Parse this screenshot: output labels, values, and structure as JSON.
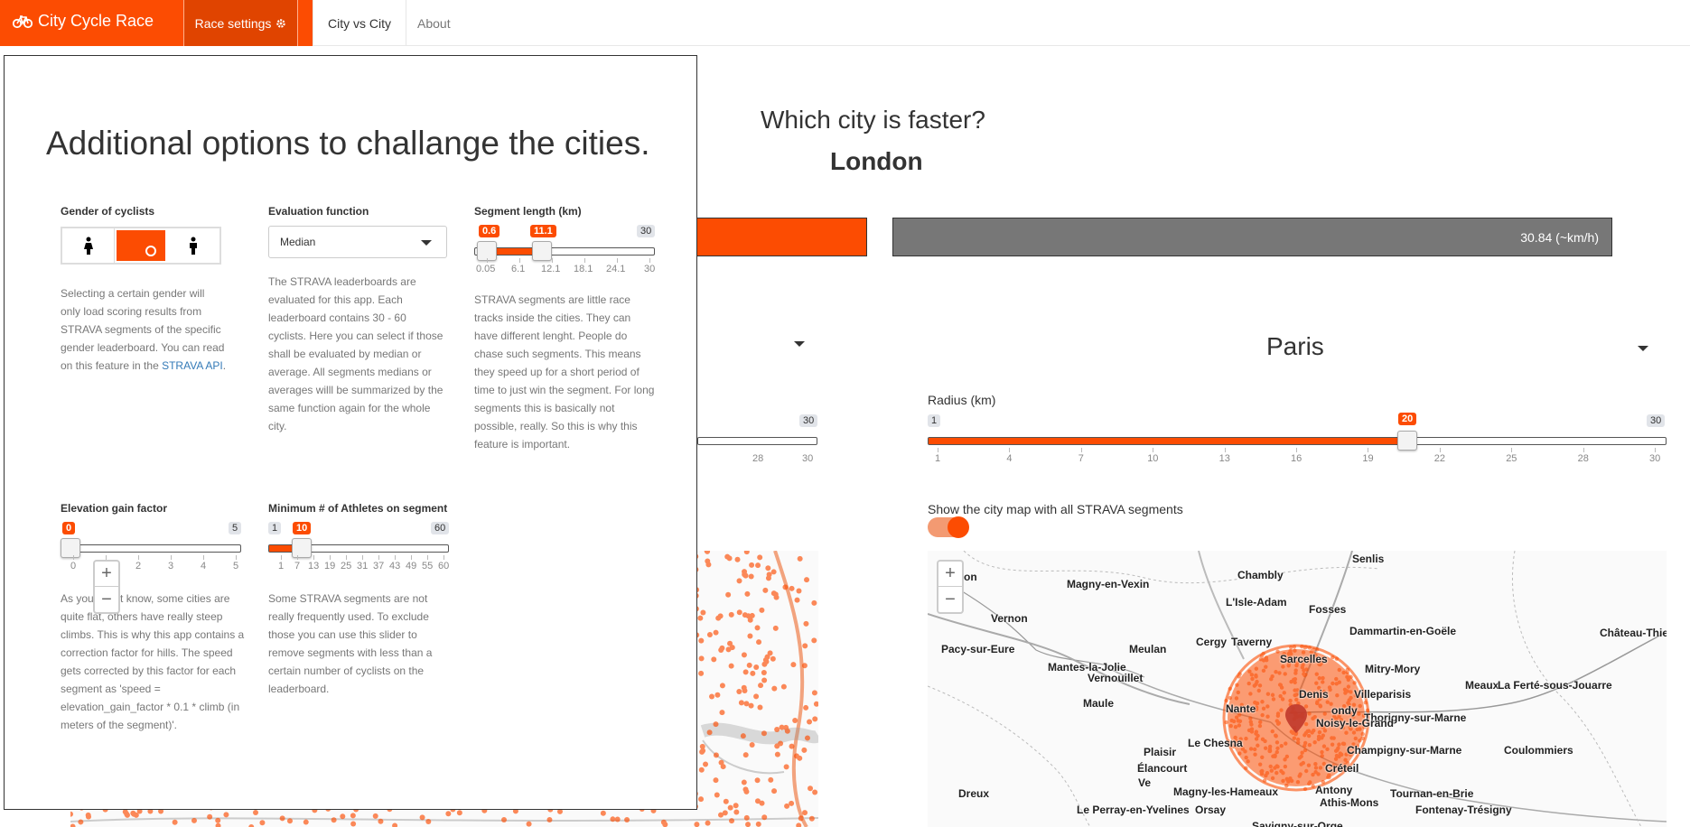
{
  "navbar": {
    "brand": "City Cycle Race",
    "settings": "Race settings",
    "tabs": [
      "City vs City",
      "About"
    ]
  },
  "main": {
    "question": "Which city is faster?",
    "leader": "London",
    "right_speed": "30.84 (~km/h)",
    "right_city": "Paris",
    "radius_label": "Radius (km)",
    "radius": {
      "min": "1",
      "max": "30",
      "value": "20",
      "ticks": [
        "1",
        "4",
        "7",
        "10",
        "13",
        "16",
        "19",
        "22",
        "25",
        "28",
        "30"
      ]
    },
    "left_radius": {
      "max": "30",
      "ticks": [
        "28",
        "30"
      ]
    },
    "map_toggle_label": "Show the city map with all STRAVA segments"
  },
  "left_map": {
    "zoom_in": "+",
    "zoom_out": "−"
  },
  "right_map": {
    "zoom_in": "+",
    "zoom_out": "−",
    "places": [
      {
        "name": "Senlis"
      },
      {
        "name": "Chambly"
      },
      {
        "name": "Magny-en-Vexin"
      },
      {
        "name": "L'Isle-Adam"
      },
      {
        "name": "Fosses"
      },
      {
        "name": "Vernon"
      },
      {
        "name": "Dammartin-en-Goële"
      },
      {
        "name": "Château-Thie"
      },
      {
        "name": "Cergy"
      },
      {
        "name": "Taverny"
      },
      {
        "name": "Pacy-sur-Eure"
      },
      {
        "name": "Meulan"
      },
      {
        "name": "Sarcelles"
      },
      {
        "name": "Mantes-la-Jolie"
      },
      {
        "name": "Mitry-Mory"
      },
      {
        "name": "Vernouillet"
      },
      {
        "name": "Meaux"
      },
      {
        "name": "La Ferté-sous-Jouarre"
      },
      {
        "name": "Denis"
      },
      {
        "name": "Villeparisis"
      },
      {
        "name": "Maule"
      },
      {
        "name": "Nante"
      },
      {
        "name": "ondy"
      },
      {
        "name": "Thorigny-sur-Marne"
      },
      {
        "name": "Noisy-le-Grand"
      },
      {
        "name": "Le Chesna"
      },
      {
        "name": "Plaisir"
      },
      {
        "name": "Champigny-sur-Marne"
      },
      {
        "name": "Coulommiers"
      },
      {
        "name": "Élancourt"
      },
      {
        "name": "Créteil"
      },
      {
        "name": "Ve"
      },
      {
        "name": "Magny-les-Hameaux"
      },
      {
        "name": "Antony"
      },
      {
        "name": "Dreux"
      },
      {
        "name": "Tournan-en-Brie"
      },
      {
        "name": "Athis-Mons"
      },
      {
        "name": "Le Perray-en-Yvelines"
      },
      {
        "name": "Orsay"
      },
      {
        "name": "Fontenay-Trésigny"
      },
      {
        "name": "Savigny-sur-Orge"
      },
      {
        "name": "on"
      }
    ]
  },
  "panel": {
    "title": "Additional options to challange the cities.",
    "gender": {
      "label": "Gender of cyclists",
      "desc": "Selecting a certain gender will only load scoring results from STRAVA segments of the specific gender leaderboard. You can read on this feature in the",
      "link": "STRAVA API"
    },
    "evaluation": {
      "label": "Evaluation function",
      "value": "Median",
      "desc": "The STRAVA leaderboards are evaluated for this app. Each leaderboard contains 30 - 60 cyclists. Here you can select if those shall be evaluated by median or average. All segments medians or averages willl be summarized by the same function again for the whole city."
    },
    "segment": {
      "label": "Segment length (km)",
      "from": "0.6",
      "to": "11.1",
      "max": "30",
      "ticks": [
        "0.05",
        "6.1",
        "12.1",
        "18.1",
        "24.1",
        "30"
      ],
      "desc": "STRAVA segments are little race tracks inside the cities. They can have different lenght. People do chase such segments. This means they speed up for a short period of time to just win the segment. For long segments this is basically not possible, really. So this is why this feature is important."
    },
    "elevation": {
      "label": "Elevation gain factor",
      "value": "0",
      "max": "5",
      "ticks": [
        "0",
        "1",
        "2",
        "3",
        "4",
        "5"
      ],
      "desc": "As you might know, some cities are quite flat, others have really steep climbs. This is why this app contains a correction factor for hills. The speed gets corrected by this factor for each segment as 'speed = elevation_gain_factor * 0.1 * climb (in meters of the segment)'."
    },
    "athletes": {
      "label": "Minimum # of Athletes on segment",
      "min": "1",
      "value": "10",
      "max": "60",
      "ticks": [
        "1",
        "7",
        "13",
        "19",
        "25",
        "31",
        "37",
        "43",
        "49",
        "55",
        "60"
      ],
      "desc": "Some STRAVA segments are not really frequently used. To exclude those you can use this slider to remove segments with less than a certain number of cyclists on the leaderboard."
    }
  },
  "colors": {
    "accent": "#fc4c02",
    "bar_gray": "#777777"
  }
}
